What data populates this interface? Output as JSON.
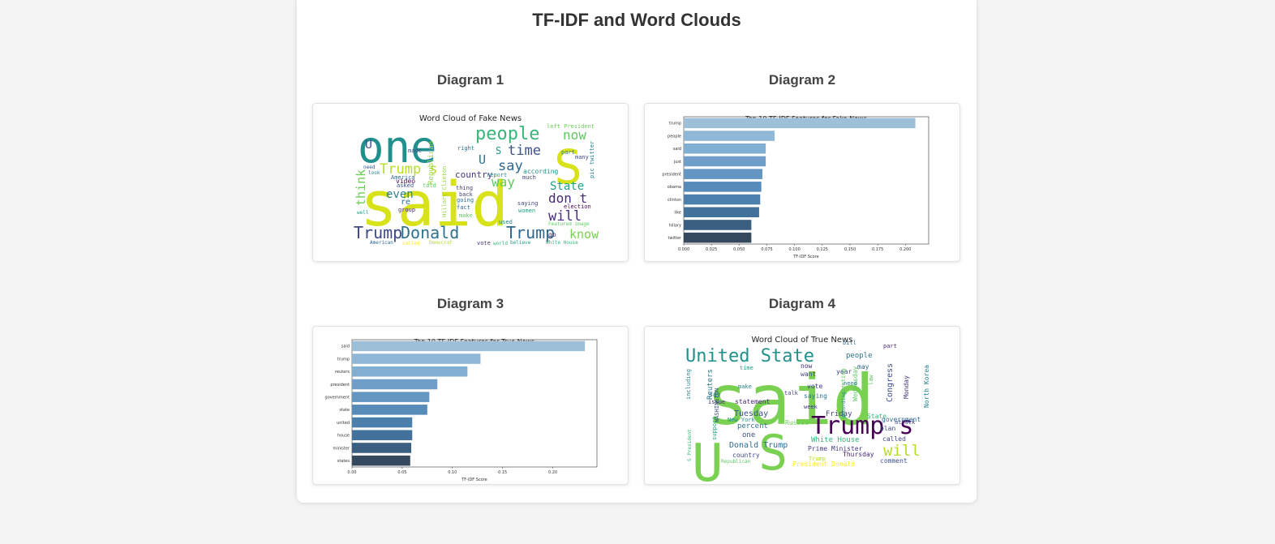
{
  "page": {
    "title": "TF-IDF and Word Clouds"
  },
  "diagrams": [
    {
      "heading": "Diagram 1"
    },
    {
      "heading": "Diagram 2"
    },
    {
      "heading": "Diagram 3"
    },
    {
      "heading": "Diagram 4"
    }
  ],
  "wordclouds": {
    "fake": {
      "title": "Word Cloud of Fake News",
      "words": [
        {
          "text": "one",
          "color": "#21908c"
        },
        {
          "text": "said",
          "color": "#d8e219"
        },
        {
          "text": "S",
          "color": "#d8e219"
        },
        {
          "text": "people",
          "color": "#35b779"
        },
        {
          "text": "now",
          "color": "#5ec962"
        },
        {
          "text": "time",
          "color": "#3b528b"
        },
        {
          "text": "say",
          "color": "#31688e"
        },
        {
          "text": "Trump s",
          "color": "#b5de2b"
        },
        {
          "text": "Donald",
          "color": "#2c728e"
        },
        {
          "text": "Trump",
          "color": "#3e4989"
        },
        {
          "text": "Trump",
          "color": "#31688e"
        },
        {
          "text": "know",
          "color": "#7ad151"
        },
        {
          "text": "will",
          "color": "#472d7b"
        },
        {
          "text": "don t",
          "color": "#482878"
        },
        {
          "text": "even",
          "color": "#26828e"
        },
        {
          "text": "State",
          "color": "#1f9e89"
        },
        {
          "text": "way",
          "color": "#5ec962"
        },
        {
          "text": "think",
          "color": "#6ece58"
        },
        {
          "text": "country",
          "color": "#443983"
        },
        {
          "text": "Hillary Clinton",
          "color": "#90d743"
        },
        {
          "text": "Republican",
          "color": "#a0da39"
        },
        {
          "text": "Featured image",
          "color": "#5ec962"
        },
        {
          "text": "White House",
          "color": "#35b779"
        },
        {
          "text": "American",
          "color": "#31688e"
        },
        {
          "text": "Democrat",
          "color": "#b5de2b"
        },
        {
          "text": "believe",
          "color": "#1f9e89"
        },
        {
          "text": "according",
          "color": "#21918c"
        },
        {
          "text": "pic twitter",
          "color": "#26828e"
        },
        {
          "text": "video",
          "color": "#440154"
        },
        {
          "text": "America",
          "color": "#31688e"
        },
        {
          "text": "left President",
          "color": "#6ece58"
        },
        {
          "text": "made",
          "color": "#3b528b"
        },
        {
          "text": "much",
          "color": "#414487"
        },
        {
          "text": "right",
          "color": "#2a788e"
        },
        {
          "text": "saying",
          "color": "#3e4989"
        },
        {
          "text": "women",
          "color": "#20a486"
        },
        {
          "text": "vote",
          "color": "#46327e"
        },
        {
          "text": "used",
          "color": "#26828e"
        },
        {
          "text": "called",
          "color": "#fde725"
        },
        {
          "text": "told",
          "color": "#5ec962"
        },
        {
          "text": "asked",
          "color": "#3b528b"
        },
        {
          "text": "going",
          "color": "#2c728e"
        },
        {
          "text": "world",
          "color": "#35b779"
        },
        {
          "text": "election",
          "color": "#440154"
        },
        {
          "text": "report",
          "color": "#21918c"
        },
        {
          "text": "group",
          "color": "#482878"
        },
        {
          "text": "look",
          "color": "#26828e"
        },
        {
          "text": "need",
          "color": "#3b528b"
        },
        {
          "text": "well",
          "color": "#1f9e89"
        },
        {
          "text": "fact",
          "color": "#31688e"
        },
        {
          "text": "back",
          "color": "#414487"
        },
        {
          "text": "make",
          "color": "#5ec962"
        },
        {
          "text": "thing",
          "color": "#443983"
        },
        {
          "text": "part",
          "color": "#2a788e"
        },
        {
          "text": "many",
          "color": "#3e4989"
        },
        {
          "text": "U",
          "color": "#3b528b"
        },
        {
          "text": "U",
          "color": "#2c728e"
        },
        {
          "text": "S",
          "color": "#21918c"
        },
        {
          "text": "re",
          "color": "#31688e"
        },
        {
          "text": "go",
          "color": "#482878"
        }
      ]
    },
    "true": {
      "title": "Word Cloud of True News",
      "words": [
        {
          "text": "said",
          "color": "#7ad151"
        },
        {
          "text": "U",
          "color": "#7ad151"
        },
        {
          "text": "S",
          "color": "#7ad151"
        },
        {
          "text": "United State",
          "color": "#21918c"
        },
        {
          "text": "Trump s",
          "color": "#440154"
        },
        {
          "text": "will",
          "color": "#b5de2b"
        },
        {
          "text": "Donald Trump",
          "color": "#31688e"
        },
        {
          "text": "White House",
          "color": "#35b779"
        },
        {
          "text": "people",
          "color": "#2c728e"
        },
        {
          "text": "Congress",
          "color": "#3e4989"
        },
        {
          "text": "North Korea",
          "color": "#26828e"
        },
        {
          "text": "Tuesday",
          "color": "#3b528b"
        },
        {
          "text": "Thursday",
          "color": "#482878"
        },
        {
          "text": "Friday",
          "color": "#414487"
        },
        {
          "text": "Monday",
          "color": "#46327e"
        },
        {
          "text": "Wednesday",
          "color": "#5ec962"
        },
        {
          "text": "Reuters",
          "color": "#2a788e"
        },
        {
          "text": "WASHINGTON",
          "color": "#3b528b"
        },
        {
          "text": "President Donald",
          "color": "#fde725"
        },
        {
          "text": "Prime Minister",
          "color": "#443983"
        },
        {
          "text": "New York",
          "color": "#21918c"
        },
        {
          "text": "statement",
          "color": "#482878"
        },
        {
          "text": "government",
          "color": "#31688e"
        },
        {
          "text": "Russia",
          "color": "#6ece58"
        },
        {
          "text": "country",
          "color": "#3e4989"
        },
        {
          "text": "percent",
          "color": "#2c728e"
        },
        {
          "text": "Republican",
          "color": "#5ec962"
        },
        {
          "text": "support",
          "color": "#20a486"
        },
        {
          "text": "including",
          "color": "#26828e"
        },
        {
          "text": "S President",
          "color": "#35b779"
        },
        {
          "text": "called",
          "color": "#414487"
        },
        {
          "text": "comment",
          "color": "#3b528b"
        },
        {
          "text": "vote",
          "color": "#443983"
        },
        {
          "text": "saying",
          "color": "#2a788e"
        },
        {
          "text": "year",
          "color": "#3e4989"
        },
        {
          "text": "time",
          "color": "#1f9e89"
        },
        {
          "text": "now",
          "color": "#472d7b"
        },
        {
          "text": "may",
          "color": "#31688e"
        },
        {
          "text": "want",
          "color": "#414487"
        },
        {
          "text": "make",
          "color": "#26828e"
        },
        {
          "text": "say",
          "color": "#2c728e"
        },
        {
          "text": "one",
          "color": "#3b528b"
        },
        {
          "text": "law",
          "color": "#5ec962"
        },
        {
          "text": "plan",
          "color": "#3e4989"
        },
        {
          "text": "State",
          "color": "#35b779"
        },
        {
          "text": "part",
          "color": "#482878"
        },
        {
          "text": "bill",
          "color": "#31688e"
        },
        {
          "text": "Trump",
          "color": "#b5de2b"
        },
        {
          "text": "meeting",
          "color": "#5ec962"
        },
        {
          "text": "according",
          "color": "#21918c"
        },
        {
          "text": "talk",
          "color": "#414487"
        },
        {
          "text": "attack",
          "color": "#3e4989"
        },
        {
          "text": "need",
          "color": "#26828e"
        },
        {
          "text": "issue",
          "color": "#482878"
        },
        {
          "text": "week",
          "color": "#443983"
        }
      ]
    }
  },
  "chart_data": [
    {
      "type": "bar",
      "orientation": "horizontal",
      "title": "Top 10 TF-IDF Features for Fake News",
      "xlabel": "TF-IDF Score",
      "ylabel": "",
      "categories": [
        "trump",
        "people",
        "said",
        "just",
        "president",
        "obama",
        "clinton",
        "like",
        "hillary",
        "twitter"
      ],
      "values": [
        0.209,
        0.082,
        0.074,
        0.074,
        0.071,
        0.07,
        0.069,
        0.068,
        0.061,
        0.061
      ],
      "xlim": [
        0,
        0.221
      ],
      "xticks": [
        "0.000",
        "0.025",
        "0.050",
        "0.075",
        "0.100",
        "0.125",
        "0.150",
        "0.175",
        "0.200"
      ],
      "xtick_values": [
        0,
        0.025,
        0.05,
        0.075,
        0.1,
        0.125,
        0.15,
        0.175,
        0.2
      ],
      "colors": [
        "#9ebfd8",
        "#90b8d6",
        "#81afd2",
        "#6f9fc8",
        "#6396c2",
        "#578bba",
        "#4b7fac",
        "#42719b",
        "#3a5f80",
        "#34495e"
      ],
      "grid": false
    },
    {
      "type": "bar",
      "orientation": "horizontal",
      "title": "Top 10 TF-IDF Features for True News",
      "xlabel": "TF-IDF Score",
      "ylabel": "",
      "categories": [
        "said",
        "trump",
        "reuters",
        "president",
        "government",
        "state",
        "united",
        "house",
        "minister",
        "states"
      ],
      "values": [
        0.232,
        0.128,
        0.115,
        0.085,
        0.077,
        0.075,
        0.06,
        0.06,
        0.059,
        0.058
      ],
      "xlim": [
        0,
        0.244
      ],
      "xticks": [
        "0.00",
        "0.05",
        "0.10",
        "0.15",
        "0.20"
      ],
      "xtick_values": [
        0,
        0.05,
        0.1,
        0.15,
        0.2
      ],
      "colors": [
        "#9ebfd8",
        "#90b8d6",
        "#81afd2",
        "#6f9fc8",
        "#6396c2",
        "#578bba",
        "#4b7fac",
        "#42719b",
        "#3a5f80",
        "#34495e"
      ],
      "grid": false
    }
  ]
}
